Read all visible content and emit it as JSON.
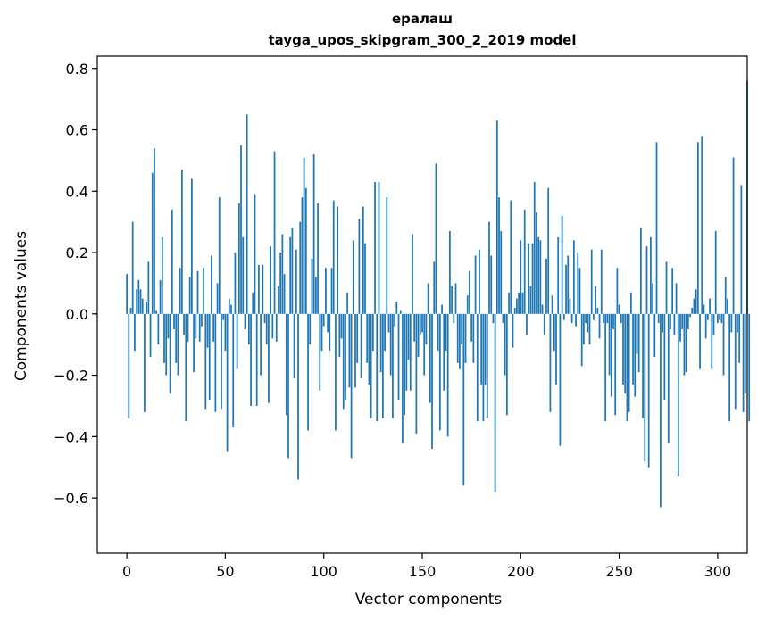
{
  "chart_data": {
    "type": "bar",
    "title": "ералаш",
    "subtitle": "tayga_upos_skipgram_300_2_2019 model",
    "xlabel": "Vector components",
    "ylabel": "Components values",
    "xlim": [
      -15,
      315
    ],
    "ylim": [
      -0.78,
      0.84
    ],
    "xticks": [
      0,
      50,
      100,
      150,
      200,
      250,
      300
    ],
    "yticks": [
      -0.6,
      -0.4,
      -0.2,
      0.0,
      0.2,
      0.4,
      0.6,
      0.8
    ],
    "ytick_labels": [
      "−0.6",
      "−0.4",
      "−0.2",
      "0.0",
      "0.2",
      "0.4",
      "0.6",
      "0.8"
    ],
    "bar_color": "#1f77b4",
    "grid": false,
    "values": [
      0.13,
      -0.34,
      0.02,
      0.3,
      -0.12,
      0.08,
      0.11,
      0.08,
      0.05,
      -0.32,
      0.04,
      0.17,
      -0.14,
      0.46,
      0.54,
      0.01,
      -0.1,
      0.11,
      0.25,
      -0.16,
      -0.2,
      -0.08,
      -0.26,
      0.34,
      -0.05,
      -0.16,
      -0.2,
      0.15,
      0.47,
      -0.07,
      -0.35,
      -0.09,
      0.12,
      0.44,
      -0.19,
      -0.08,
      0.14,
      -0.09,
      -0.04,
      0.15,
      -0.31,
      -0.11,
      -0.28,
      0.19,
      -0.09,
      -0.32,
      0.1,
      0.38,
      -0.31,
      -0.02,
      -0.12,
      -0.45,
      0.05,
      0.03,
      -0.37,
      0.2,
      -0.18,
      0.36,
      0.55,
      0.25,
      -0.05,
      0.65,
      -0.1,
      -0.3,
      0.07,
      0.39,
      -0.3,
      0.16,
      -0.2,
      0.16,
      -0.03,
      -0.1,
      -0.29,
      0.22,
      -0.08,
      0.53,
      -0.09,
      0.09,
      0.2,
      0.26,
      0.13,
      -0.33,
      -0.47,
      0.25,
      0.28,
      -0.21,
      0.21,
      -0.54,
      0.3,
      0.38,
      0.51,
      0.41,
      -0.38,
      -0.1,
      0.18,
      0.52,
      0.12,
      0.36,
      -0.25,
      -0.12,
      -0.04,
      0.15,
      -0.06,
      -0.12,
      0.15,
      0.37,
      -0.38,
      0.35,
      -0.14,
      -0.08,
      -0.31,
      -0.28,
      0.07,
      -0.24,
      -0.47,
      0.24,
      -0.24,
      -0.16,
      0.31,
      -0.21,
      0.35,
      0.23,
      -0.16,
      -0.23,
      -0.34,
      -0.12,
      0.43,
      -0.35,
      0.43,
      -0.19,
      -0.34,
      -0.12,
      0.38,
      -0.06,
      -0.2,
      -0.34,
      -0.04,
      0.04,
      -0.28,
      0.01,
      -0.42,
      -0.33,
      -0.25,
      -0.15,
      -0.25,
      0.26,
      -0.09,
      -0.39,
      -0.14,
      -0.07,
      -0.06,
      -0.2,
      -0.1,
      0.1,
      -0.29,
      -0.44,
      0.17,
      0.49,
      -0.12,
      -0.38,
      0.03,
      -0.25,
      -0.12,
      -0.4,
      0.27,
      0.09,
      -0.03,
      0.1,
      -0.16,
      -0.18,
      -0.1,
      -0.56,
      -0.16,
      0.06,
      0.14,
      -0.09,
      -0.16,
      0.19,
      -0.35,
      0.21,
      -0.23,
      -0.35,
      -0.23,
      -0.34,
      0.3,
      0.19,
      -0.03,
      -0.58,
      0.63,
      0.38,
      0.27,
      -0.03,
      -0.2,
      -0.33,
      0.07,
      0.37,
      -0.11,
      0.02,
      0.05,
      0.07,
      0.24,
      0.07,
      0.34,
      -0.07,
      0.23,
      0.09,
      0.23,
      0.43,
      0.33,
      0.25,
      0.24,
      0.03,
      -0.07,
      0.18,
      0.41,
      -0.32,
      0.06,
      -0.12,
      -0.23,
      0.25,
      -0.43,
      0.32,
      -0.02,
      0.16,
      0.19,
      0.05,
      -0.03,
      0.24,
      -0.04,
      0.2,
      0.15,
      -0.17,
      -0.1,
      -0.03,
      -0.06,
      -0.1,
      0.21,
      -0.02,
      0.09,
      0.02,
      -0.08,
      0.21,
      -0.03,
      -0.35,
      -0.03,
      -0.2,
      -0.27,
      -0.05,
      -0.33,
      0.15,
      0.03,
      -0.03,
      -0.23,
      -0.26,
      -0.35,
      -0.32,
      0.07,
      -0.23,
      -0.27,
      -0.13,
      -0.19,
      0.28,
      -0.34,
      -0.48,
      0.22,
      -0.5,
      0.25,
      0.1,
      -0.14,
      0.56,
      -0.03,
      -0.63,
      -0.06,
      -0.28,
      0.17,
      -0.42,
      -0.05,
      0.15,
      -0.07,
      0.1,
      -0.53,
      -0.09,
      -0.05,
      -0.2,
      -0.19,
      -0.05,
      -0.01,
      0.02,
      0.05,
      0.08,
      0.56,
      -0.18,
      0.58,
      0.03,
      -0.08,
      -0.02,
      0.05,
      -0.18,
      -0.07,
      0.27,
      -0.03,
      -0.02,
      -0.03,
      -0.2,
      0.12,
      0.05,
      -0.35,
      -0.06,
      0.51,
      -0.31,
      -0.06,
      -0.16,
      0.42,
      -0.32,
      -0.26,
      0.76,
      -0.35
    ]
  }
}
